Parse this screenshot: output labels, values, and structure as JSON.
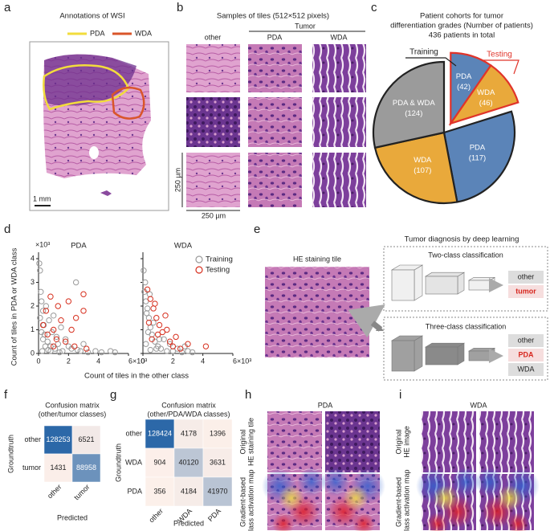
{
  "panel_labels": [
    "a",
    "b",
    "c",
    "d",
    "e",
    "f",
    "g",
    "h",
    "i"
  ],
  "a": {
    "title": "Annotations of WSI",
    "legend": [
      {
        "name": "PDA",
        "color": "#f2dc3c"
      },
      {
        "name": "WDA",
        "color": "#d9552a"
      }
    ],
    "scale_bar": "1 mm"
  },
  "b": {
    "title": "Samples of tiles (512×512 pixels)",
    "group": "Tumor",
    "columns": [
      "other",
      "PDA",
      "WDA"
    ],
    "scale": "250 µm"
  },
  "e": {
    "title": "Tumor diagnosis by deep learning",
    "tile_label": "HE staining tile",
    "two_class": {
      "title": "Two-class classification",
      "outputs": [
        "other",
        "tumor"
      ],
      "highlight": 1
    },
    "three_class": {
      "title": "Three-class classification",
      "outputs": [
        "other",
        "PDA",
        "WDA"
      ],
      "highlight": 1
    }
  },
  "h": {
    "title": "PDA",
    "row_labels": [
      [
        "Original",
        "HE staining tile"
      ],
      [
        "Gradient-based",
        "class activation map"
      ]
    ]
  },
  "i": {
    "title": "WDA",
    "row_labels": [
      [
        "Original",
        "HE image"
      ],
      [
        "Gradient-based",
        "class activation map"
      ]
    ]
  },
  "chart_data": [
    {
      "type": "pie",
      "title": [
        "Patient cohorts for tumor",
        "differentiation grades (Number of patients)",
        "436 patients in total"
      ],
      "groups": [
        {
          "name": "Testing",
          "outline": "#e0342a",
          "categories": [
            "PDA",
            "WDA"
          ],
          "values": [
            42,
            46
          ],
          "value_labels": [
            "(42)",
            "(46)"
          ],
          "colors": [
            "#5b84b8",
            "#e9a93b"
          ]
        },
        {
          "name": "Training",
          "outline": "#222222",
          "categories": [
            "PDA",
            "WDA",
            "PDA & WDA"
          ],
          "values": [
            117,
            107,
            124
          ],
          "value_labels": [
            "(117)",
            "(107)",
            "(124)"
          ],
          "colors": [
            "#5b84b8",
            "#e9a93b",
            "#9b9b9b"
          ]
        }
      ]
    },
    {
      "type": "scatter",
      "subplot_titles": [
        "PDA",
        "WDA"
      ],
      "xlabel": "Count of tiles in the other class",
      "ylabel": "Count of tiles in PDA or WDA class",
      "y_multiplier": "×10³",
      "xlim": [
        0,
        6
      ],
      "ylim": [
        0,
        4
      ],
      "xticks": [
        0,
        2,
        4,
        {
          "value": 6,
          "label": "6×10³"
        }
      ],
      "yticks": [
        0,
        1,
        2,
        3,
        4
      ],
      "grid": false,
      "legend": "upper right",
      "series": [
        {
          "name": "Training",
          "color": "#9a9a9a",
          "points": [
            {
              "x": [
                0.05,
                0.1,
                0.15,
                0.2,
                0.3,
                0.35,
                0.4,
                0.5,
                0.6,
                0.7,
                0.8,
                0.9,
                1.0,
                1.1,
                1.2,
                1.3,
                1.5,
                1.6,
                1.8,
                2.0,
                2.2,
                2.5,
                2.8,
                3.0,
                3.3,
                3.8,
                4.2,
                4.8,
                5.1,
                0.25,
                0.45,
                0.65,
                0.3,
                0.2,
                0.1,
                0.8,
                1.4,
                2.6
              ],
              "y": [
                3.8,
                3.5,
                2.6,
                2.2,
                1.8,
                1.2,
                0.8,
                2.0,
                0.5,
                1.4,
                0.3,
                0.9,
                1.6,
                0.2,
                0.7,
                0.4,
                1.1,
                0.1,
                0.6,
                0.3,
                0.2,
                3.0,
                0.1,
                0.4,
                0.05,
                0.1,
                0.05,
                0.1,
                0.05,
                0.1,
                0.3,
                0.15,
                0.6,
                0.9,
                1.5,
                0.1,
                0.05,
                0.15
              ]
            },
            {
              "x": [
                0.05,
                0.1,
                0.2,
                0.3,
                0.4,
                0.5,
                0.6,
                0.8,
                1.0,
                1.2,
                1.4,
                1.6,
                1.8,
                2.0,
                2.3,
                2.6,
                3.0,
                0.15,
                0.25,
                0.35,
                0.7,
                0.9,
                1.1,
                0.45,
                2.8,
                3.3,
                0.2,
                0.5
              ],
              "y": [
                3.5,
                2.6,
                2.2,
                1.9,
                1.5,
                1.1,
                0.8,
                0.5,
                0.3,
                0.2,
                0.6,
                0.1,
                0.4,
                0.1,
                0.2,
                0.05,
                0.1,
                3.0,
                1.7,
                0.9,
                1.3,
                0.2,
                0.6,
                2.5,
                0.3,
                0.05,
                0.4,
                0.15
              ]
            }
          ]
        },
        {
          "name": "Testing",
          "color": "#d7301f",
          "points": [
            {
              "x": [
                0.5,
                1.0,
                1.3,
                2.0,
                2.5,
                3.0,
                1.8,
                2.4,
                3.2,
                1.0,
                0.8,
                2.2,
                0.6,
                1.5,
                3.0,
                0.3,
                1.2
              ],
              "y": [
                1.8,
                1.0,
                2.0,
                2.2,
                1.5,
                2.5,
                0.5,
                0.3,
                0.2,
                0.3,
                2.4,
                1.0,
                0.8,
                1.4,
                1.8,
                1.2,
                0.6
              ]
            },
            {
              "x": [
                0.3,
                0.5,
                0.7,
                0.9,
                1.1,
                1.3,
                1.5,
                1.8,
                2.0,
                2.5,
                3.0,
                4.2,
                0.6,
                1.0,
                1.6,
                0.4,
                2.2,
                0.8
              ],
              "y": [
                2.7,
                2.3,
                1.9,
                1.5,
                1.2,
                0.9,
                1.6,
                0.5,
                0.3,
                0.2,
                0.4,
                0.3,
                0.6,
                0.8,
                1.0,
                1.3,
                0.7,
                2.1
              ]
            }
          ]
        }
      ]
    },
    {
      "type": "heatmap",
      "title": [
        "Confusion matrix",
        "(other/tumor classes)"
      ],
      "ylabel": "Groundtruth",
      "xlabel": "Predicted",
      "rows": [
        "other",
        "tumor"
      ],
      "columns": [
        "other",
        "tumor"
      ],
      "values": [
        [
          128253,
          6521
        ],
        [
          1431,
          88958
        ]
      ]
    },
    {
      "type": "heatmap",
      "title": [
        "Confusion matrix",
        "(other/PDA/WDA classes)"
      ],
      "ylabel": "Groundtruth",
      "xlabel": "Predicted",
      "rows": [
        "other",
        "WDA",
        "PDA"
      ],
      "columns": [
        "other",
        "WDA",
        "PDA"
      ],
      "values": [
        [
          128424,
          4178,
          1396
        ],
        [
          904,
          40120,
          3631
        ],
        [
          356,
          4184,
          41970
        ]
      ]
    }
  ]
}
